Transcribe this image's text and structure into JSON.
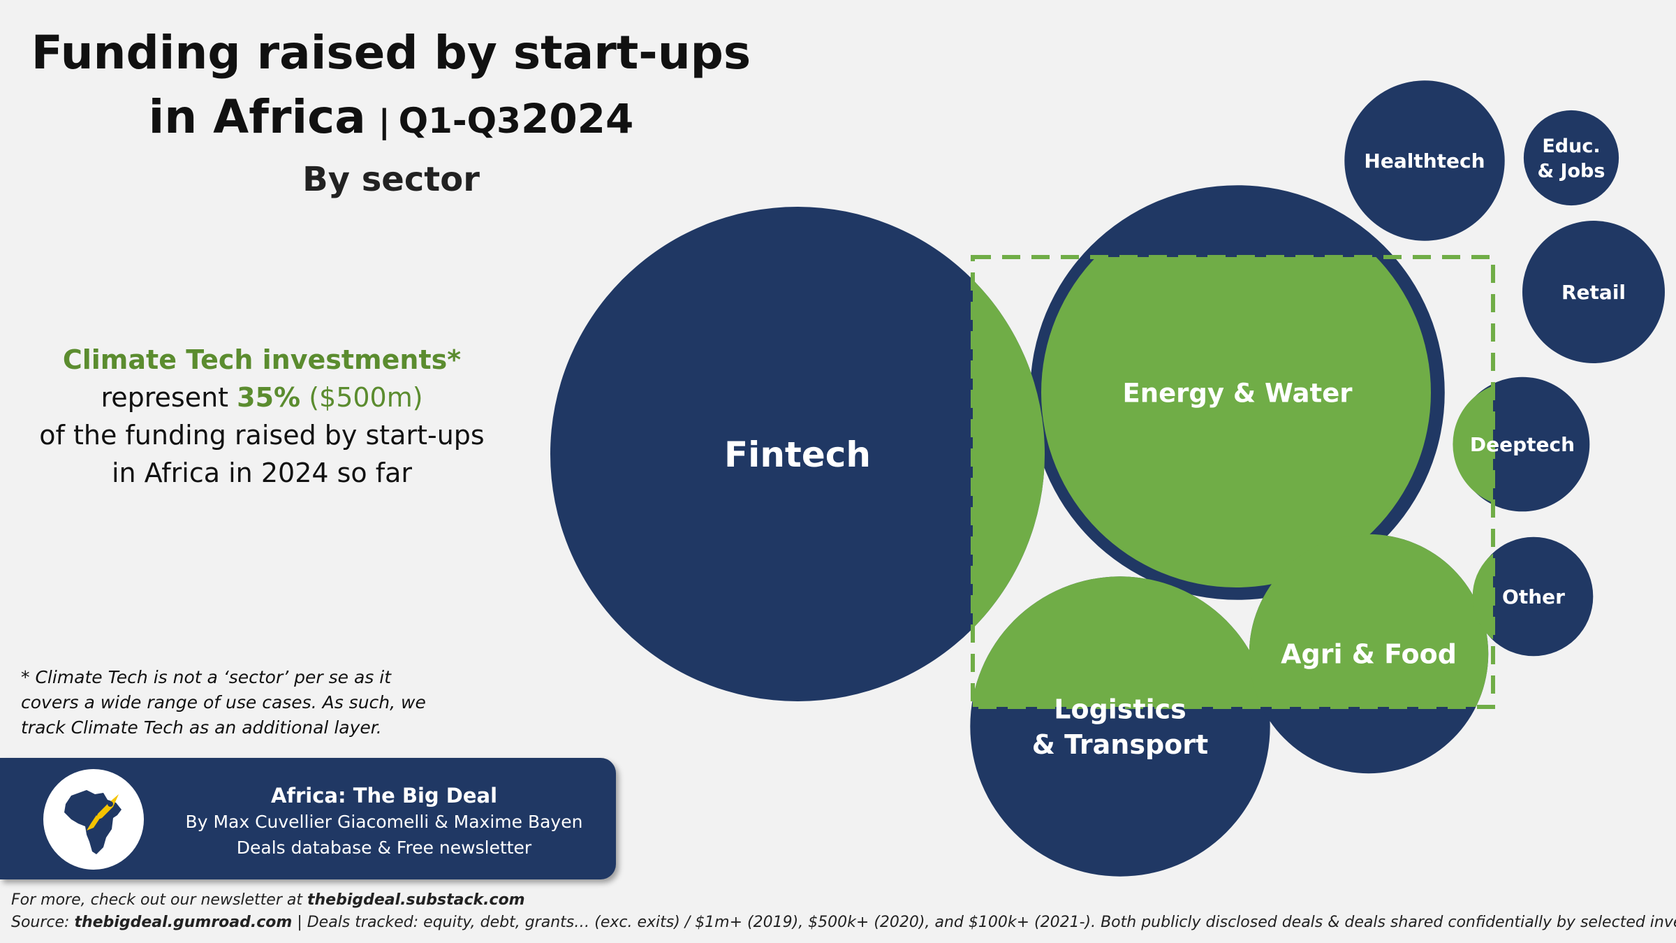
{
  "title": {
    "line1": "Funding raised by start-ups",
    "line2_main": "in Africa",
    "separator": "|",
    "period_prefix": "Q1-Q3",
    "period_year": "2024",
    "subtitle": "By sector"
  },
  "claim": {
    "highlight": "Climate Tech investments*",
    "pre_pct": "represent ",
    "pct": "35%",
    "amount": " ($500m)",
    "line3": "of the funding raised by start-ups",
    "line4": "in Africa in 2024 so far"
  },
  "footnote": {
    "line1": "* Climate Tech is not a ‘sector’ per se as it",
    "line2": "covers a wide range of use cases. As such, we",
    "line3": "track Climate Tech as an additional layer."
  },
  "brand": {
    "name": "Africa: The Big Deal",
    "authors": "By Max Cuvellier Giacomelli & Maxime Bayen",
    "tagline": "Deals database & Free newsletter"
  },
  "footer": {
    "line1_prefix": "For more, check out our newsletter at ",
    "line1_link": "thebigdeal.substack.com",
    "line2_prefix": "Source: ",
    "line2_link": "thebigdeal.gumroad.com",
    "line2_rest": " | Deals tracked: equity, debt, grants… (exc. exits) / $1m+ (2019), $500k+ (2020), and $100k+ (2021-). Both publicly disclosed deals & deals shared confidentially by selected investors"
  },
  "colors": {
    "navy": "#203864",
    "green": "#70ad47",
    "dashed_box": "#70ad47",
    "background": "#f2f2f2"
  },
  "chart_data": {
    "type": "bubble",
    "title": "Funding raised by start-ups in Africa | Q1-Q3 2024",
    "subtitle": "By sector",
    "climate_tech_share_pct": 35,
    "climate_tech_amount": "$500m",
    "series": [
      {
        "name": "Fintech",
        "label_lines": [
          "Fintech"
        ],
        "relative_size": 1.0,
        "climate_overlap": "partial"
      },
      {
        "name": "Energy & Water",
        "label_lines": [
          "Energy & Water"
        ],
        "relative_size": 0.703,
        "climate_overlap": "mostly"
      },
      {
        "name": "Logistics & Transport",
        "label_lines": [
          "Logistics",
          "& Transport"
        ],
        "relative_size": 0.368,
        "climate_overlap": "partial"
      },
      {
        "name": "Agri & Food",
        "label_lines": [
          "Agri & Food"
        ],
        "relative_size": 0.234,
        "climate_overlap": "mostly"
      },
      {
        "name": "Healthtech",
        "label_lines": [
          "Healthtech"
        ],
        "relative_size": 0.105,
        "climate_overlap": "none"
      },
      {
        "name": "Retail",
        "label_lines": [
          "Retail"
        ],
        "relative_size": 0.083,
        "climate_overlap": "none"
      },
      {
        "name": "Deeptech",
        "label_lines": [
          "Deeptech"
        ],
        "relative_size": 0.074,
        "climate_overlap": "partial"
      },
      {
        "name": "Other",
        "label_lines": [
          "Other"
        ],
        "relative_size": 0.058,
        "climate_overlap": "partial"
      },
      {
        "name": "Educ. & Jobs",
        "label_lines": [
          "Educ.",
          "& Jobs"
        ],
        "relative_size": 0.037,
        "climate_overlap": "none"
      }
    ]
  }
}
